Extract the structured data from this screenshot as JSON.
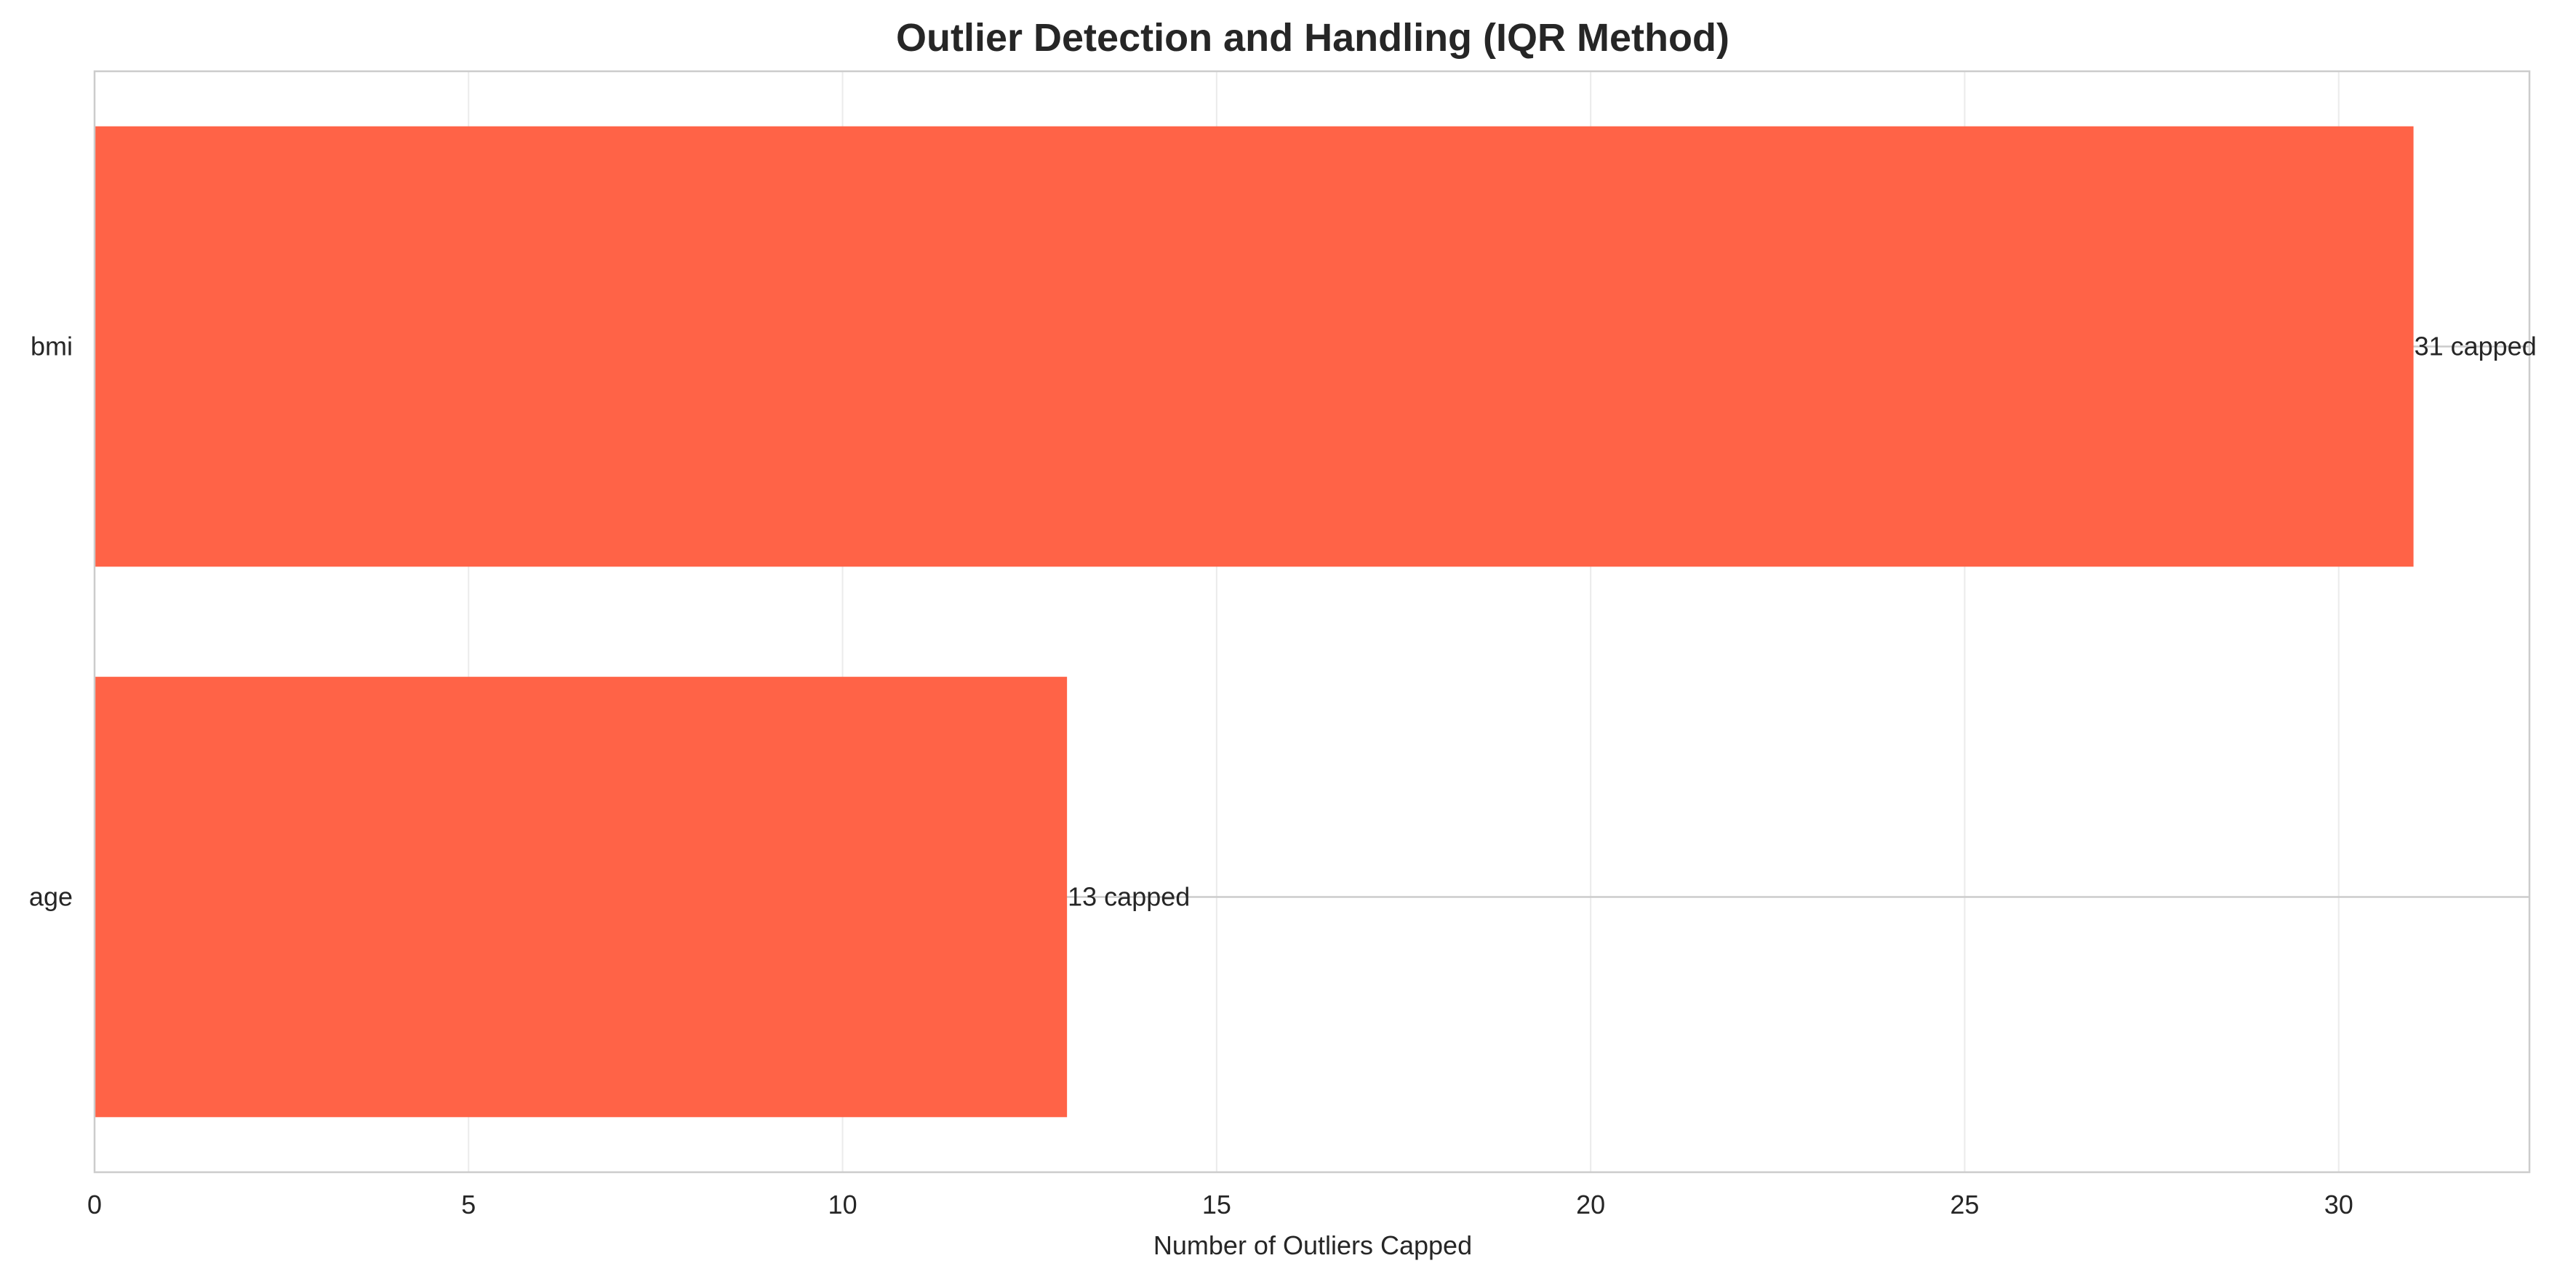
{
  "chart_data": {
    "type": "bar",
    "orientation": "horizontal",
    "title": "Outlier Detection and Handling (IQR Method)",
    "xlabel": "Number of Outliers Capped",
    "ylabel": "",
    "categories": [
      "bmi",
      "age"
    ],
    "values": [
      31,
      13
    ],
    "data_labels": [
      "31 capped",
      "13 capped"
    ],
    "xlim": [
      0,
      32.55
    ],
    "xticks": [
      0,
      5,
      10,
      15,
      20,
      25,
      30
    ],
    "grid": true,
    "bar_color": "#FF6347"
  }
}
